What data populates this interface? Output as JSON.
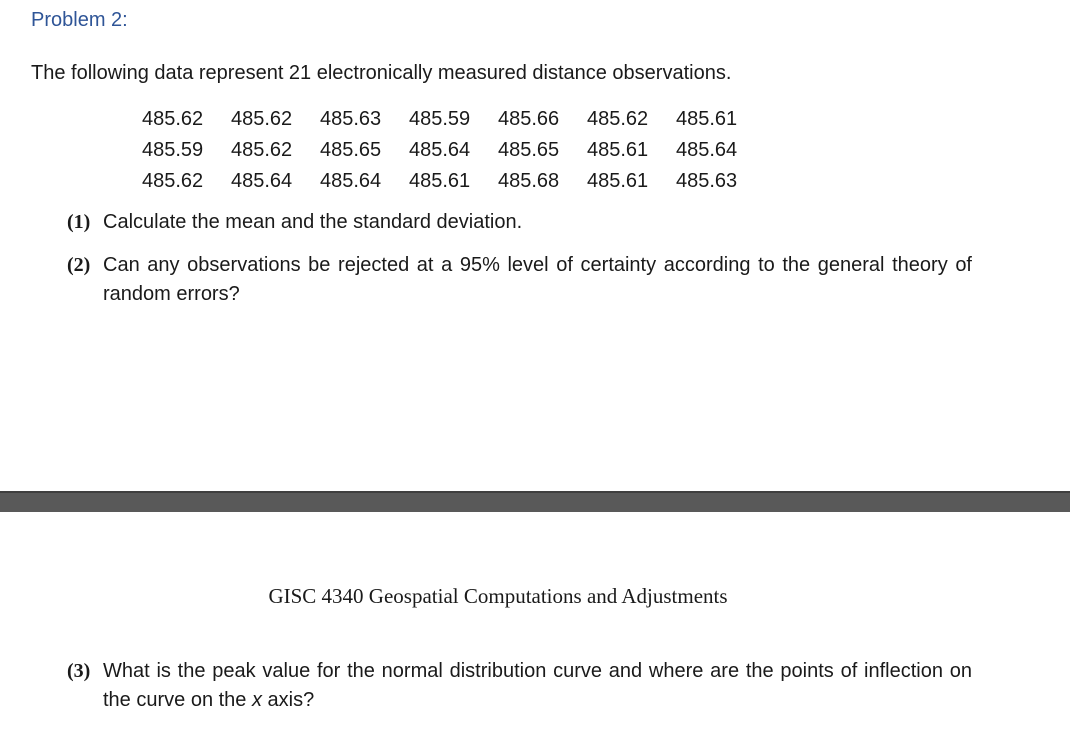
{
  "heading": "Problem 2:",
  "intro": "The following data represent 21 electronically measured distance observations.",
  "observations": [
    [
      "485.62",
      "485.62",
      "485.63",
      "485.59",
      "485.66",
      "485.62",
      "485.61"
    ],
    [
      "485.59",
      "485.62",
      "485.65",
      "485.64",
      "485.65",
      "485.61",
      "485.64"
    ],
    [
      "485.62",
      "485.64",
      "485.64",
      "485.61",
      "485.68",
      "485.61",
      "485.63"
    ]
  ],
  "questions": [
    {
      "number": "(1)",
      "text": "Calculate the mean and the standard deviation."
    },
    {
      "number": "(2)",
      "text": "Can any observations be rejected at a 95% level of certainty according to the general theory of random errors?"
    },
    {
      "number": "(3)",
      "text_before": "What is the peak value for the normal distribution curve and where are the points of inflection on the curve on the ",
      "text_italic": "x",
      "text_after": " axis?"
    }
  ],
  "footer": {
    "course_title": "GISC 4340 Geospatial Computations and Adjustments"
  }
}
